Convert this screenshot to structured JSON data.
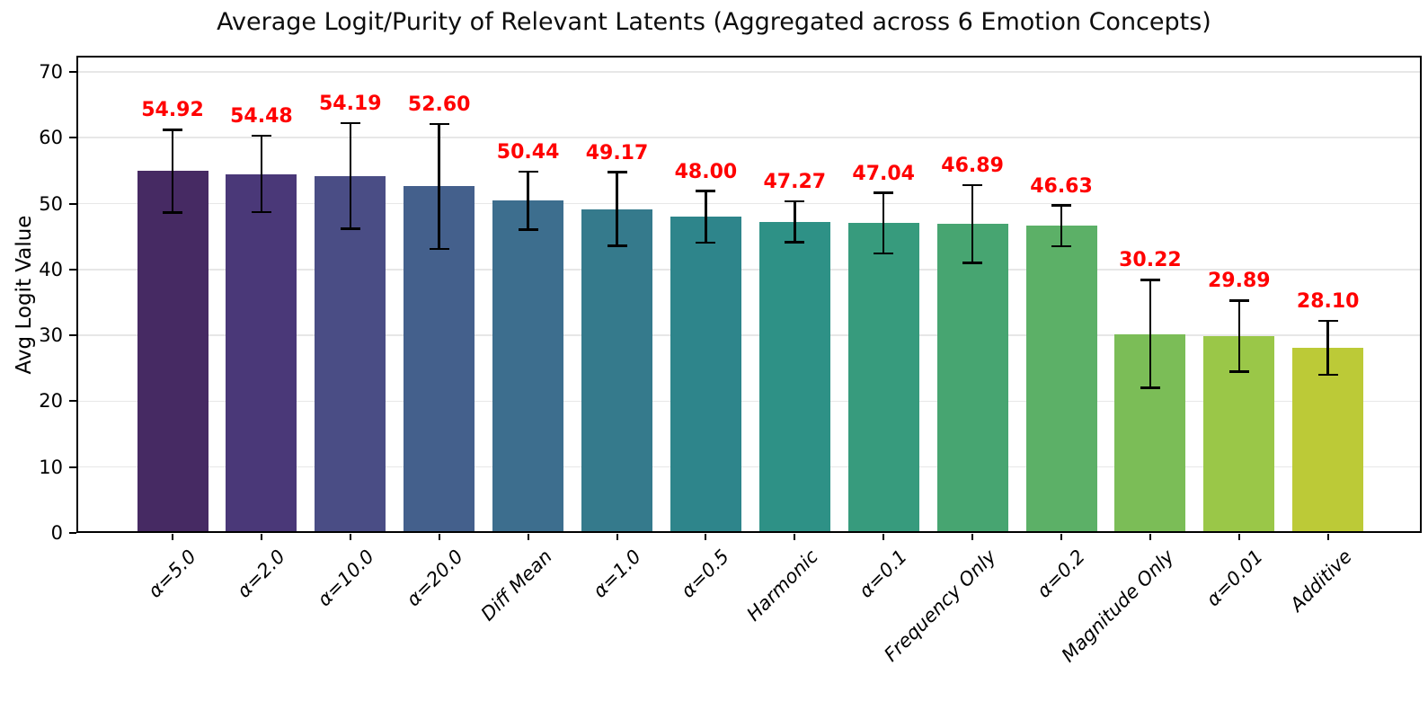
{
  "chart_data": {
    "type": "bar",
    "title": "Average Logit/Purity of Relevant Latents (Aggregated across 6 Emotion Concepts)",
    "xlabel": "",
    "ylabel": "Avg Logit Value",
    "categories": [
      "α=5.0",
      "α=2.0",
      "α=10.0",
      "α=20.0",
      "Diff Mean",
      "α=1.0",
      "α=0.5",
      "Harmonic",
      "α=0.1",
      "Frequency Only",
      "α=0.2",
      "Magnitude Only",
      "α=0.01",
      "Additive"
    ],
    "values": [
      54.92,
      54.48,
      54.19,
      52.6,
      50.44,
      49.17,
      48.0,
      47.27,
      47.04,
      46.89,
      46.63,
      30.22,
      29.89,
      28.1
    ],
    "errors": [
      6.3,
      5.8,
      8.0,
      9.5,
      4.4,
      5.6,
      3.9,
      3.1,
      4.6,
      5.9,
      3.1,
      8.2,
      5.4,
      4.1
    ],
    "value_labels": [
      "54.92",
      "54.48",
      "54.19",
      "52.60",
      "50.44",
      "49.17",
      "48.00",
      "47.27",
      "47.04",
      "46.89",
      "46.63",
      "30.22",
      "29.89",
      "28.10"
    ],
    "bar_colors": [
      "#462a63",
      "#4a3878",
      "#4a4d85",
      "#44608c",
      "#3d6e8e",
      "#357a8c",
      "#2e858b",
      "#2e9186",
      "#379b7d",
      "#47a571",
      "#5cb067",
      "#7bbd57",
      "#9ac748",
      "#bcca37"
    ],
    "yticks": [
      0,
      10,
      20,
      30,
      40,
      50,
      60,
      70
    ],
    "ylim": [
      0,
      72.45
    ],
    "grid": true,
    "grid_color": "#e7e7e7",
    "legend_position": "none",
    "value_label_color": "#ff0000",
    "error_bar_color": "#000000",
    "xtick_style": "italic, rotated 45deg",
    "background_color": "#ffffff"
  }
}
